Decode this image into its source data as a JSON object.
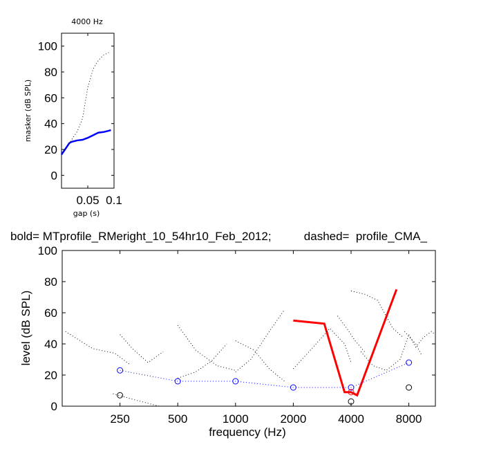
{
  "chart_data": [
    {
      "type": "line",
      "title": "4000 Hz",
      "xlabel": "gap (s)",
      "ylabel": "masker (dB SPL)",
      "xlim": [
        0,
        0.1
      ],
      "ylim": [
        -10,
        110
      ],
      "xticks": [
        "0.05",
        "0.1"
      ],
      "yticks": [
        "0",
        "20",
        "40",
        "60",
        "80",
        "100"
      ],
      "grid": false,
      "series": [
        {
          "style": "solid",
          "color": "#0000ff",
          "x": [
            0.0,
            0.005,
            0.01,
            0.015,
            0.02,
            0.03,
            0.04,
            0.05,
            0.06,
            0.07,
            0.08,
            0.09,
            0.094
          ],
          "y": [
            16,
            19,
            22,
            25,
            26,
            27,
            27.5,
            29,
            31,
            33,
            33.5,
            34.5,
            35
          ]
        },
        {
          "style": "dotted",
          "color": "#000000",
          "x": [
            0.0,
            0.01,
            0.02,
            0.03,
            0.04,
            0.05,
            0.06,
            0.07,
            0.08,
            0.09
          ],
          "y": [
            18,
            22,
            28,
            34,
            44,
            68,
            82,
            89,
            93,
            95
          ]
        }
      ]
    },
    {
      "type": "line",
      "title": "bold= MTprofile_RMeright_10_54hr10_Feb_2012;          dashed=  profile_CMA_",
      "xlabel": "frequency (Hz)",
      "ylabel": "level (dB SPL)",
      "xscale": "log",
      "xlim": [
        125,
        11000
      ],
      "ylim": [
        0,
        100
      ],
      "xticks": [
        250,
        500,
        1000,
        2000,
        4000,
        8000
      ],
      "xticklabels": [
        "250",
        "500",
        "1000",
        "2000",
        "4000",
        "8000"
      ],
      "yticks": [
        "0",
        "20",
        "40",
        "60",
        "80",
        "100"
      ],
      "grid": false,
      "series": [
        {
          "style": "bold",
          "color": "#ff0000",
          "x": [
            2000,
            2900,
            3700,
            4000,
            4300,
            6900
          ],
          "y": [
            55,
            53,
            9,
            9,
            7,
            75
          ]
        },
        {
          "style": "dotted-markers",
          "color": "#0000ff",
          "marker": "circle",
          "x": [
            250,
            500,
            1000,
            2000,
            4000,
            8000
          ],
          "y": [
            23,
            16,
            16,
            12,
            12,
            28
          ]
        },
        {
          "style": "markers",
          "color": "#ff0000",
          "marker": "circle",
          "x": [
            4000
          ],
          "y": [
            9
          ]
        },
        {
          "style": "markers",
          "color": "#000000",
          "marker": "circle",
          "x": [
            250,
            4000,
            8000
          ],
          "y": [
            7,
            3,
            12
          ]
        },
        {
          "style": "dotted",
          "color": "#000000",
          "x": [
            130,
            180,
            235,
            280
          ],
          "y": [
            48,
            37,
            34,
            27
          ]
        },
        {
          "style": "dotted",
          "color": "#000000",
          "x": [
            250,
            290,
            350,
            420
          ],
          "y": [
            46,
            37,
            28,
            35
          ]
        },
        {
          "style": "dotted",
          "color": "#000000",
          "x": [
            230,
            300,
            400
          ],
          "y": [
            8,
            4,
            0
          ]
        },
        {
          "style": "dotted",
          "color": "#000000",
          "x": [
            500,
            620,
            800,
            1000
          ],
          "y": [
            52,
            36,
            26,
            23
          ]
        },
        {
          "style": "dotted",
          "color": "#000000",
          "x": [
            500,
            620,
            750,
            900
          ],
          "y": [
            18,
            22,
            29,
            40
          ]
        },
        {
          "style": "dotted",
          "color": "#000000",
          "x": [
            1000,
            1250,
            1500,
            1800
          ],
          "y": [
            42,
            36,
            24,
            16
          ]
        },
        {
          "style": "dotted",
          "color": "#000000",
          "x": [
            1000,
            1200,
            1500,
            1800
          ],
          "y": [
            22,
            30,
            48,
            62
          ]
        },
        {
          "style": "dotted",
          "color": "#000000",
          "x": [
            2000,
            2500,
            3100,
            3700,
            4000
          ],
          "y": [
            24,
            37,
            50,
            40,
            28
          ]
        },
        {
          "style": "dotted",
          "color": "#000000",
          "x": [
            4000,
            4700,
            5500,
            6600,
            7500
          ],
          "y": [
            74,
            72,
            68,
            50,
            44
          ]
        },
        {
          "style": "dotted",
          "color": "#000000",
          "x": [
            3400,
            3800,
            4200,
            4700
          ],
          "y": [
            58,
            50,
            42,
            35
          ]
        },
        {
          "style": "dotted",
          "color": "#000000",
          "x": [
            4500,
            5200,
            6100,
            7200,
            8000
          ],
          "y": [
            35,
            26,
            23,
            30,
            46
          ]
        },
        {
          "style": "dotted",
          "color": "#000000",
          "x": [
            8000,
            8700,
            9500,
            10500,
            11000
          ],
          "y": [
            46,
            38,
            44,
            48,
            46
          ]
        },
        {
          "style": "dotted",
          "color": "#000000",
          "x": [
            7600,
            8100,
            8700,
            9300
          ],
          "y": [
            48,
            44,
            40,
            33
          ]
        }
      ]
    }
  ]
}
